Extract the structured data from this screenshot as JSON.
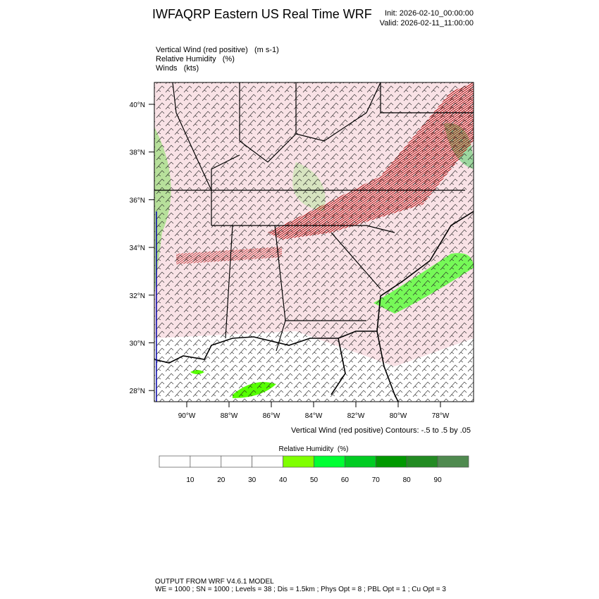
{
  "header": {
    "title": "IWFAQRP Eastern US Real Time WRF",
    "init": "Init: 2026-02-10_00:00:00",
    "valid": "Valid: 2026-02-11_11:00:00"
  },
  "fields": [
    "Vertical Wind (red positive)   (m s-1)",
    "Relative Humidity   (%)",
    "Winds   (kts)"
  ],
  "map": {
    "lat_labels": [
      "40°N",
      "38°N",
      "36°N",
      "34°N",
      "32°N",
      "30°N",
      "28°N"
    ],
    "lon_labels": [
      "90°W",
      "88°W",
      "86°W",
      "84°W",
      "82°W",
      "80°W",
      "78°W"
    ],
    "contour_note": "Vertical Wind (red positive) Contours: -.5 to .5 by .05"
  },
  "colorbar": {
    "title": "Relative Humidity  (%)",
    "colors": [
      "#ffffff",
      "#ffffff",
      "#ffffff",
      "#ffffff",
      "#7fff00",
      "#00ff33",
      "#00cc22",
      "#009900",
      "#228b22",
      "#4f8a4f"
    ],
    "labels": [
      10,
      20,
      30,
      40,
      50,
      60,
      70,
      80,
      90
    ]
  },
  "footer": [
    "OUTPUT FROM WRF V4.6.1 MODEL",
    "WE = 1000 ; SN = 1000 ; Levels = 38 ; Dis = 1.5km ; Phys Opt = 8 ; PBL Opt = 1 ; Cu Opt = 3"
  ]
}
